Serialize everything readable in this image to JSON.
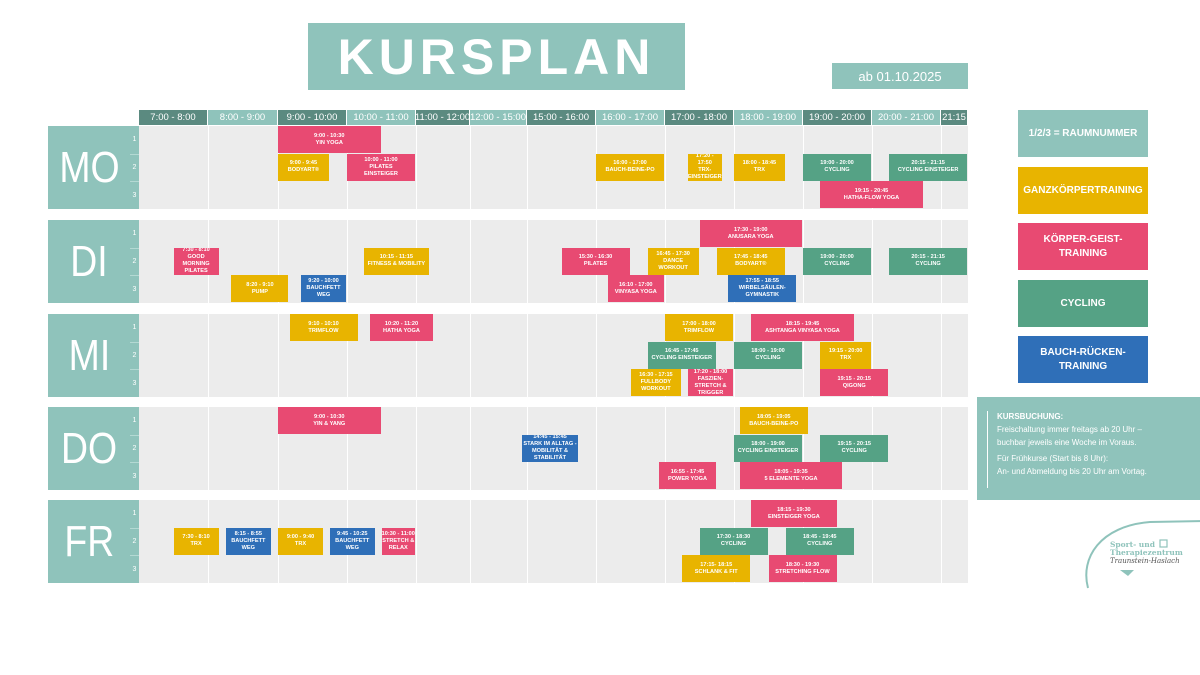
{
  "title": "KURSPLAN",
  "valid_from": "ab 01.10.2025",
  "colors": {
    "teal": "#8fc3bb",
    "teal_dark": "#5b8a80",
    "g": "#e8b400",
    "k": "#e84a72",
    "c": "#55a285",
    "b": "#2f6fb8",
    "grid": "#ececec"
  },
  "time_columns": [
    "7:00 - 8:00",
    "8:00 - 9:00",
    "9:00 - 10:00",
    "10:00 - 11:00",
    "11:00 - 12:00",
    "12:00 - 15:00",
    "15:00 - 16:00",
    "16:00 - 17:00",
    "17:00 - 18:00",
    "18:00 - 19:00",
    "19:00 - 20:00",
    "20:00 - 21:00",
    "21:15"
  ],
  "rooms": [
    "1",
    "2",
    "3"
  ],
  "days": [
    {
      "label": "MO",
      "events": [
        {
          "room": 1,
          "time": "9:00 - 10:30",
          "name": "YIN YOGA",
          "cat": "k"
        },
        {
          "room": 2,
          "time": "9:00 - 9:45",
          "name": "BODYART®",
          "cat": "g"
        },
        {
          "room": 2,
          "time": "10:00 - 11:00",
          "name": "PILATES\nEINSTEIGER",
          "cat": "k"
        },
        {
          "room": 2,
          "time": "16:00 - 17:00",
          "name": "BAUCH-BEINE-PO",
          "cat": "g"
        },
        {
          "room": 2,
          "time": "17:20 - 17:50",
          "name": "TRX-\nEINSTEIGER",
          "cat": "g"
        },
        {
          "room": 2,
          "time": "18:00 - 18:45",
          "name": "TRX",
          "cat": "g"
        },
        {
          "room": 2,
          "time": "19:00 - 20:00",
          "name": "CYCLING",
          "cat": "c"
        },
        {
          "room": 2,
          "time": "20:15 - 21:15",
          "name": "CYCLING EINSTEIGER",
          "cat": "c"
        },
        {
          "room": 3,
          "time": "19:15 - 20:45",
          "name": "HATHA-FLOW YOGA",
          "cat": "k"
        }
      ]
    },
    {
      "label": "DI",
      "events": [
        {
          "room": 2,
          "time": "7:30 - 8:10",
          "name": "GOOD MORNING\nPILATES",
          "cat": "k"
        },
        {
          "room": 3,
          "time": "8:20 - 9:10",
          "name": "PUMP",
          "cat": "g"
        },
        {
          "room": 3,
          "time": "9:20 - 10:00",
          "name": "BAUCHFETT WEG",
          "cat": "b"
        },
        {
          "room": 2,
          "time": "10:15 - 11:15",
          "name": "FITNESS & MOBILITY",
          "cat": "g"
        },
        {
          "room": 2,
          "time": "15:30 - 16:30",
          "name": "PILATES",
          "cat": "k"
        },
        {
          "room": 3,
          "time": "16:10 - 17:00",
          "name": "VINYASA YOGA",
          "cat": "k"
        },
        {
          "room": 2,
          "time": "16:45 - 17:30",
          "name": "DANCE\nWORKOUT",
          "cat": "g"
        },
        {
          "room": 1,
          "time": "17:30 - 19:00",
          "name": "ANUSARA YOGA",
          "cat": "k"
        },
        {
          "room": 2,
          "time": "17:45 - 18:45",
          "name": "BODYART®",
          "cat": "g"
        },
        {
          "room": 3,
          "time": "17:55 - 18:55",
          "name": "WIRBELSÄULEN-\nGYMNASTIK",
          "cat": "b"
        },
        {
          "room": 2,
          "time": "19:00 - 20:00",
          "name": "CYCLING",
          "cat": "c"
        },
        {
          "room": 2,
          "time": "20:15 - 21:15",
          "name": "CYCLING",
          "cat": "c"
        }
      ]
    },
    {
      "label": "MI",
      "events": [
        {
          "room": 1,
          "time": "9:10 - 10:10",
          "name": "TRIMFLOW",
          "cat": "g"
        },
        {
          "room": 1,
          "time": "10:20 - 11:20",
          "name": "HATHA YOGA",
          "cat": "k"
        },
        {
          "room": 1,
          "time": "17:00 - 18:00",
          "name": "TRIMFLOW",
          "cat": "g"
        },
        {
          "room": 1,
          "time": "18:15 - 19:45",
          "name": "ASHTANGA VINYASA YOGA",
          "cat": "k"
        },
        {
          "room": 2,
          "time": "16:45 - 17:45",
          "name": "CYCLING EINSTEIGER",
          "cat": "c"
        },
        {
          "room": 2,
          "time": "18:00 - 19:00",
          "name": "CYCLING",
          "cat": "c"
        },
        {
          "room": 2,
          "time": "19:15 - 20:00",
          "name": "TRX",
          "cat": "g"
        },
        {
          "room": 3,
          "time": "16:30 - 17:15",
          "name": "FULLBODY\nWORKOUT",
          "cat": "g"
        },
        {
          "room": 3,
          "time": "17:20 - 18:00",
          "name": "FASZIEN-\nSTRETCH &\nTRIGGER",
          "cat": "k"
        },
        {
          "room": 3,
          "time": "19:15 - 20:15",
          "name": "QIGONG",
          "cat": "k"
        }
      ]
    },
    {
      "label": "DO",
      "events": [
        {
          "room": 1,
          "time": "9:00 - 10:30",
          "name": "YIN & YANG",
          "cat": "k"
        },
        {
          "room": 2,
          "time": "14:45 - 15:45",
          "name": "STARK IM ALLTAG -\nMOBILITÄT & STABILITÄT",
          "cat": "b"
        },
        {
          "room": 1,
          "time": "18:05 - 19:05",
          "name": "BAUCH-BEINE-PO",
          "cat": "g"
        },
        {
          "room": 2,
          "time": "18:00 - 19:00",
          "name": "CYCLING EINSTEIGER",
          "cat": "c"
        },
        {
          "room": 2,
          "time": "19:15 - 20:15",
          "name": "CYCLING",
          "cat": "c"
        },
        {
          "room": 3,
          "time": "16:55 - 17:45",
          "name": "POWER YOGA",
          "cat": "k"
        },
        {
          "room": 3,
          "time": "18:05 - 19:35",
          "name": "5 ELEMENTE YOGA",
          "cat": "k"
        }
      ]
    },
    {
      "label": "FR",
      "events": [
        {
          "room": 2,
          "time": "7:30 - 8:10",
          "name": "TRX",
          "cat": "g"
        },
        {
          "room": 2,
          "time": "8:15 - 8:55",
          "name": "BAUCHFETT WEG",
          "cat": "b"
        },
        {
          "room": 2,
          "time": "9:00 - 9:40",
          "name": "TRX",
          "cat": "g"
        },
        {
          "room": 2,
          "time": "9:45 - 10:25",
          "name": "BAUCHFETT WEG",
          "cat": "b"
        },
        {
          "room": 2,
          "time": "10:30 - 11:00",
          "name": "STRETCH &\nRELAX",
          "cat": "k"
        },
        {
          "room": 1,
          "time": "18:15 - 19:30",
          "name": "EINSTEIGER YOGA",
          "cat": "k"
        },
        {
          "room": 2,
          "time": "17:30 - 18:30",
          "name": "CYCLING",
          "cat": "c"
        },
        {
          "room": 2,
          "time": "18:45 - 19:45",
          "name": "CYCLING",
          "cat": "c"
        },
        {
          "room": 3,
          "time": "17:15- 18:15",
          "name": "SCHLANK & FIT",
          "cat": "g"
        },
        {
          "room": 3,
          "time": "18:30 - 19:30",
          "name": "STRETCHING FLOW",
          "cat": "k"
        }
      ]
    }
  ],
  "legend": [
    {
      "label": "1/2/3 = RAUMNUMMER",
      "cat": "teal"
    },
    {
      "label": "GANZKÖRPERTRAINING",
      "cat": "g"
    },
    {
      "label": "KÖRPER-GEIST-\nTRAINING",
      "cat": "k"
    },
    {
      "label": "CYCLING",
      "cat": "c"
    },
    {
      "label": "BAUCH-RÜCKEN-\nTRAINING",
      "cat": "b"
    }
  ],
  "info": {
    "heading": "KURSBUCHUNG:",
    "line1": "Freischaltung immer freitags ab 20 Uhr –",
    "line2": "buchbar jeweils eine Woche im Voraus.",
    "line3": "Für Frühkurse (Start bis 8 Uhr):",
    "line4": "An- und Abmeldung bis 20 Uhr am Vortag."
  },
  "logo": {
    "line1": "Sport- und",
    "line2": "Therapiezentrum",
    "line3": "Traunstein-Haslach"
  }
}
